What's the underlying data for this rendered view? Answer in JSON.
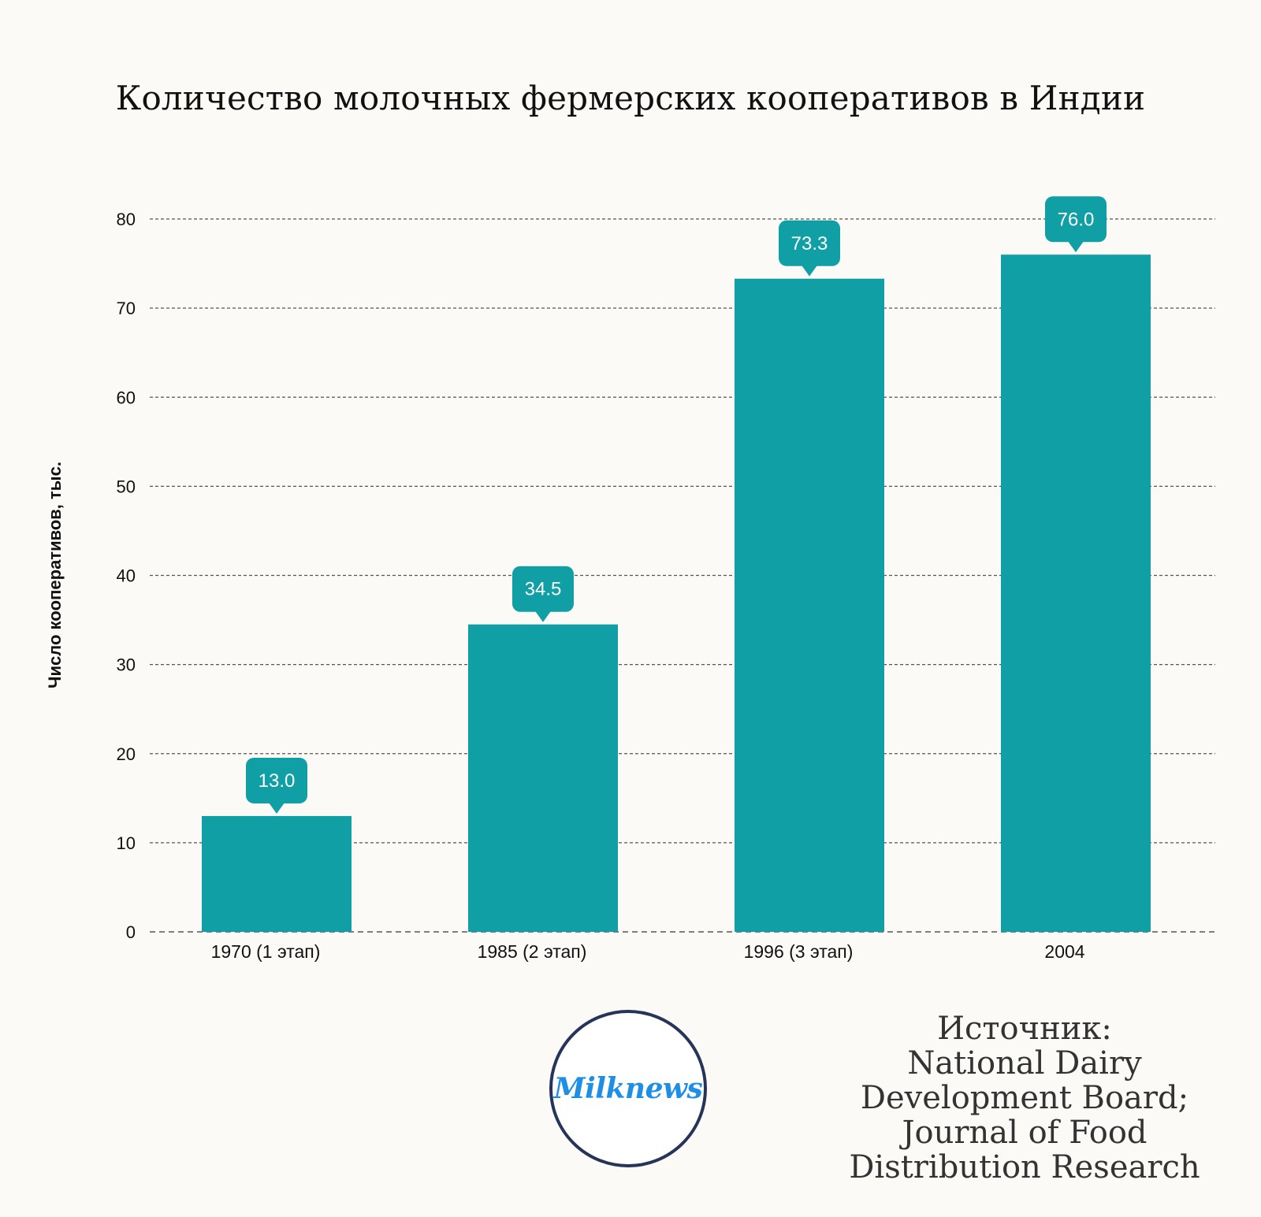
{
  "chart_data": {
    "type": "bar",
    "title": "Количество молочных фермерских кооперативов в Индии",
    "xlabel": "",
    "ylabel": "Число кооперативов, тыс.",
    "categories": [
      "1970 (1 этап)",
      "1985 (2 этап)",
      "1996 (3 этап)",
      "2004"
    ],
    "values": [
      13.0,
      34.5,
      73.3,
      76.0
    ],
    "value_labels": [
      "13.0",
      "34.5",
      "73.3",
      "76.0"
    ],
    "ylim": [
      0,
      80
    ],
    "yticks": [
      0,
      10,
      20,
      30,
      40,
      50,
      60,
      70,
      80
    ],
    "grid": "dashed horizontal",
    "legend": "none"
  },
  "colors": {
    "bar": "#109fa5",
    "background": "#fbfaf6",
    "grid": "#555555",
    "text": "#111111",
    "logo_ring": "#27345a",
    "logo_text": "#1f8fe6"
  },
  "logo": {
    "text": "Milknews"
  },
  "source": {
    "lines": [
      "Источник:",
      "National Dairy",
      "Development Board;",
      "Journal of Food",
      "Distribution Research"
    ]
  }
}
